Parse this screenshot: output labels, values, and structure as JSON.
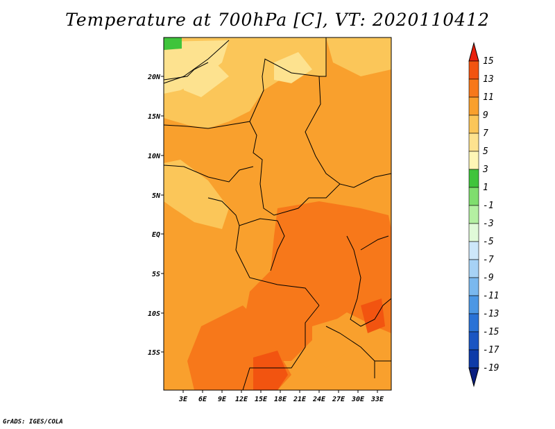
{
  "title": "Temperature at 700hPa [C], VT: 2020110412",
  "credit": "GrADS: IGES/COLA",
  "map": {
    "lat_labels": [
      "20N",
      "15N",
      "10N",
      "5N",
      "EQ",
      "5S",
      "10S",
      "15S"
    ],
    "lon_labels": [
      "3E",
      "6E",
      "9E",
      "12E",
      "15E",
      "18E",
      "21E",
      "24E",
      "27E",
      "30E",
      "33E"
    ]
  },
  "colorbar": {
    "labels": [
      "15",
      "13",
      "11",
      "9",
      "7",
      "5",
      "3",
      "1",
      "-1",
      "-3",
      "-5",
      "-7",
      "-9",
      "-11",
      "-13",
      "-15",
      "-17",
      "-19"
    ],
    "colors": [
      "#e8200b",
      "#f25410",
      "#f7781a",
      "#f9a02d",
      "#fbc659",
      "#fde28f",
      "#fef6b6",
      "#3fc43b",
      "#7fde6e",
      "#b4f0a2",
      "#e0fad8",
      "#cde7fa",
      "#a7d2f5",
      "#7ab8ee",
      "#4c97e4",
      "#2a72d6",
      "#1a55c2",
      "#0d3aa8",
      "#0a1f80"
    ]
  }
}
